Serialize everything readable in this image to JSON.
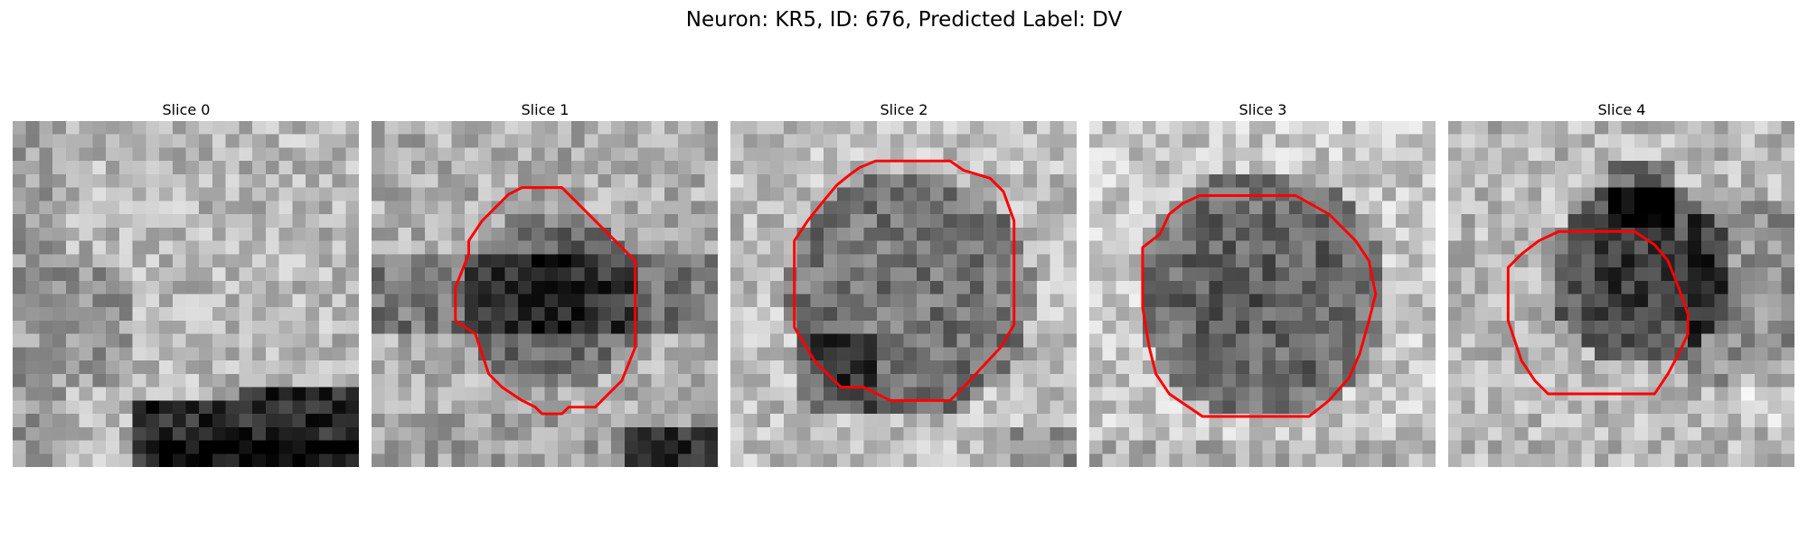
{
  "figure": {
    "title": "Neuron: KR5, ID: 676, Predicted Label: DV",
    "contour_color": "#ff0000"
  },
  "panels": [
    {
      "title": "Slice 0",
      "has_contour": false
    },
    {
      "title": "Slice 1",
      "has_contour": true
    },
    {
      "title": "Slice 2",
      "has_contour": true
    },
    {
      "title": "Slice 3",
      "has_contour": true
    },
    {
      "title": "Slice 4",
      "has_contour": true
    }
  ]
}
